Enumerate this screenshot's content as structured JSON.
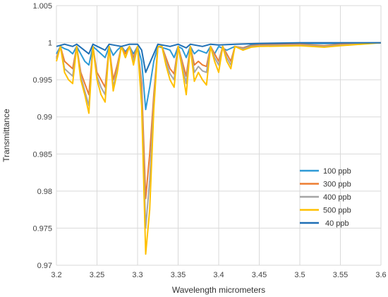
{
  "chart_data": {
    "type": "line",
    "title": "",
    "xlabel": "Wavelength micrometers",
    "ylabel": "Transmittance",
    "xlim": [
      3.2,
      3.6
    ],
    "ylim": [
      0.97,
      1.005
    ],
    "xticks": [
      "3.2",
      "3.25",
      "3.3",
      "3.35",
      "3.4",
      "3.45",
      "3.5",
      "3.55",
      "3.6"
    ],
    "yticks": [
      "0.97",
      "0.975",
      "0.98",
      "0.985",
      "0.99",
      "0.995",
      "1",
      "1.005"
    ],
    "grid": true,
    "legend_position": "right-middle",
    "series": [
      {
        "name": "100 ppb",
        "color": "#2E9AD6",
        "points": [
          [
            3.2,
            0.9985
          ],
          [
            3.205,
            0.9995
          ],
          [
            3.21,
            0.9992
          ],
          [
            3.215,
            0.999
          ],
          [
            3.22,
            0.9985
          ],
          [
            3.225,
            0.9995
          ],
          [
            3.235,
            0.9975
          ],
          [
            3.24,
            0.997
          ],
          [
            3.245,
            0.9995
          ],
          [
            3.255,
            0.9985
          ],
          [
            3.26,
            0.998
          ],
          [
            3.265,
            0.9995
          ],
          [
            3.27,
            0.9983
          ],
          [
            3.275,
            0.999
          ],
          [
            3.28,
            0.9995
          ],
          [
            3.285,
            0.9988
          ],
          [
            3.29,
            0.9995
          ],
          [
            3.295,
            0.9985
          ],
          [
            3.3,
            0.9995
          ],
          [
            3.305,
            0.9975
          ],
          [
            3.31,
            0.991
          ],
          [
            3.315,
            0.994
          ],
          [
            3.32,
            0.9975
          ],
          [
            3.325,
            0.9995
          ],
          [
            3.335,
            0.9992
          ],
          [
            3.34,
            0.999
          ],
          [
            3.345,
            0.998
          ],
          [
            3.35,
            0.9995
          ],
          [
            3.355,
            0.9992
          ],
          [
            3.36,
            0.998
          ],
          [
            3.365,
            0.9995
          ],
          [
            3.37,
            0.9985
          ],
          [
            3.375,
            0.999
          ],
          [
            3.38,
            0.9988
          ],
          [
            3.385,
            0.9986
          ],
          [
            3.39,
            0.9995
          ],
          [
            3.395,
            0.9985
          ],
          [
            3.4,
            0.9995
          ],
          [
            3.41,
            0.999
          ],
          [
            3.42,
            0.9995
          ],
          [
            3.43,
            0.9993
          ],
          [
            3.44,
            0.9997
          ],
          [
            3.45,
            0.9998
          ],
          [
            3.5,
            0.9999
          ],
          [
            3.55,
            0.9999
          ],
          [
            3.6,
            1.0
          ]
        ]
      },
      {
        "name": "300 ppb",
        "color": "#ED7D31",
        "points": [
          [
            3.2,
            0.998
          ],
          [
            3.205,
            0.9995
          ],
          [
            3.21,
            0.9975
          ],
          [
            3.215,
            0.997
          ],
          [
            3.22,
            0.9965
          ],
          [
            3.225,
            0.9995
          ],
          [
            3.23,
            0.996
          ],
          [
            3.235,
            0.9945
          ],
          [
            3.24,
            0.993
          ],
          [
            3.245,
            0.9995
          ],
          [
            3.25,
            0.996
          ],
          [
            3.255,
            0.995
          ],
          [
            3.26,
            0.994
          ],
          [
            3.265,
            0.9995
          ],
          [
            3.27,
            0.995
          ],
          [
            3.275,
            0.997
          ],
          [
            3.28,
            0.9995
          ],
          [
            3.285,
            0.9985
          ],
          [
            3.29,
            0.9995
          ],
          [
            3.295,
            0.998
          ],
          [
            3.3,
            0.9995
          ],
          [
            3.305,
            0.9945
          ],
          [
            3.31,
            0.979
          ],
          [
            3.315,
            0.985
          ],
          [
            3.32,
            0.993
          ],
          [
            3.325,
            0.9995
          ],
          [
            3.33,
            0.9995
          ],
          [
            3.335,
            0.998
          ],
          [
            3.34,
            0.9965
          ],
          [
            3.345,
            0.9958
          ],
          [
            3.35,
            0.9995
          ],
          [
            3.355,
            0.9975
          ],
          [
            3.36,
            0.9955
          ],
          [
            3.365,
            0.9995
          ],
          [
            3.37,
            0.997
          ],
          [
            3.375,
            0.9975
          ],
          [
            3.38,
            0.997
          ],
          [
            3.385,
            0.9968
          ],
          [
            3.39,
            0.9995
          ],
          [
            3.395,
            0.9985
          ],
          [
            3.4,
            0.9975
          ],
          [
            3.405,
            0.9995
          ],
          [
            3.41,
            0.9985
          ],
          [
            3.415,
            0.9975
          ],
          [
            3.42,
            0.9995
          ],
          [
            3.43,
            0.9993
          ],
          [
            3.44,
            0.9996
          ],
          [
            3.45,
            0.9997
          ],
          [
            3.5,
            0.9998
          ],
          [
            3.53,
            0.9996
          ],
          [
            3.55,
            0.9998
          ],
          [
            3.6,
            1.0
          ]
        ]
      },
      {
        "name": "400 ppb",
        "color": "#A5A5A5",
        "points": [
          [
            3.2,
            0.9978
          ],
          [
            3.205,
            0.9995
          ],
          [
            3.21,
            0.9965
          ],
          [
            3.215,
            0.996
          ],
          [
            3.22,
            0.9955
          ],
          [
            3.225,
            0.9995
          ],
          [
            3.23,
            0.9955
          ],
          [
            3.235,
            0.9935
          ],
          [
            3.24,
            0.9915
          ],
          [
            3.245,
            0.9995
          ],
          [
            3.25,
            0.9955
          ],
          [
            3.255,
            0.994
          ],
          [
            3.26,
            0.993
          ],
          [
            3.265,
            0.9995
          ],
          [
            3.27,
            0.994
          ],
          [
            3.275,
            0.9965
          ],
          [
            3.28,
            0.9995
          ],
          [
            3.285,
            0.998
          ],
          [
            3.29,
            0.9995
          ],
          [
            3.295,
            0.9975
          ],
          [
            3.3,
            0.9995
          ],
          [
            3.305,
            0.993
          ],
          [
            3.31,
            0.975
          ],
          [
            3.315,
            0.9815
          ],
          [
            3.32,
            0.992
          ],
          [
            3.325,
            0.9995
          ],
          [
            3.33,
            0.9995
          ],
          [
            3.335,
            0.9975
          ],
          [
            3.34,
            0.9958
          ],
          [
            3.345,
            0.995
          ],
          [
            3.35,
            0.9995
          ],
          [
            3.355,
            0.997
          ],
          [
            3.36,
            0.9945
          ],
          [
            3.365,
            0.9995
          ],
          [
            3.37,
            0.996
          ],
          [
            3.375,
            0.9968
          ],
          [
            3.38,
            0.9962
          ],
          [
            3.385,
            0.996
          ],
          [
            3.39,
            0.9995
          ],
          [
            3.395,
            0.998
          ],
          [
            3.4,
            0.997
          ],
          [
            3.405,
            0.9995
          ],
          [
            3.41,
            0.998
          ],
          [
            3.415,
            0.997
          ],
          [
            3.42,
            0.9995
          ],
          [
            3.43,
            0.9992
          ],
          [
            3.44,
            0.9995
          ],
          [
            3.45,
            0.9996
          ],
          [
            3.5,
            0.9997
          ],
          [
            3.53,
            0.9995
          ],
          [
            3.55,
            0.9997
          ],
          [
            3.6,
            1.0
          ]
        ]
      },
      {
        "name": "500 ppb",
        "color": "#FFC000",
        "points": [
          [
            3.2,
            0.9975
          ],
          [
            3.205,
            0.9995
          ],
          [
            3.21,
            0.996
          ],
          [
            3.215,
            0.995
          ],
          [
            3.22,
            0.9945
          ],
          [
            3.225,
            0.9995
          ],
          [
            3.23,
            0.995
          ],
          [
            3.235,
            0.993
          ],
          [
            3.24,
            0.9905
          ],
          [
            3.245,
            0.9995
          ],
          [
            3.25,
            0.995
          ],
          [
            3.255,
            0.993
          ],
          [
            3.26,
            0.992
          ],
          [
            3.265,
            0.9995
          ],
          [
            3.27,
            0.9935
          ],
          [
            3.275,
            0.996
          ],
          [
            3.28,
            0.9995
          ],
          [
            3.285,
            0.998
          ],
          [
            3.29,
            0.9995
          ],
          [
            3.295,
            0.997
          ],
          [
            3.3,
            0.9995
          ],
          [
            3.305,
            0.9915
          ],
          [
            3.31,
            0.9715
          ],
          [
            3.315,
            0.9775
          ],
          [
            3.32,
            0.991
          ],
          [
            3.325,
            0.9995
          ],
          [
            3.33,
            0.9995
          ],
          [
            3.335,
            0.997
          ],
          [
            3.34,
            0.995
          ],
          [
            3.345,
            0.994
          ],
          [
            3.35,
            0.9995
          ],
          [
            3.355,
            0.9965
          ],
          [
            3.36,
            0.993
          ],
          [
            3.365,
            0.9995
          ],
          [
            3.37,
            0.9948
          ],
          [
            3.375,
            0.996
          ],
          [
            3.38,
            0.995
          ],
          [
            3.385,
            0.9943
          ],
          [
            3.39,
            0.9995
          ],
          [
            3.395,
            0.9975
          ],
          [
            3.4,
            0.996
          ],
          [
            3.405,
            0.9995
          ],
          [
            3.41,
            0.9975
          ],
          [
            3.415,
            0.9965
          ],
          [
            3.42,
            0.9995
          ],
          [
            3.43,
            0.999
          ],
          [
            3.44,
            0.9994
          ],
          [
            3.45,
            0.9995
          ],
          [
            3.5,
            0.9996
          ],
          [
            3.53,
            0.9994
          ],
          [
            3.55,
            0.9996
          ],
          [
            3.6,
            1.0
          ]
        ]
      },
      {
        "name": "40 ppb",
        "color": "#1F6FB5",
        "points": [
          [
            3.2,
            0.9995
          ],
          [
            3.21,
            0.9998
          ],
          [
            3.22,
            0.9995
          ],
          [
            3.225,
            0.9998
          ],
          [
            3.24,
            0.9985
          ],
          [
            3.245,
            0.9998
          ],
          [
            3.26,
            0.999
          ],
          [
            3.265,
            0.9998
          ],
          [
            3.28,
            0.9995
          ],
          [
            3.29,
            0.9998
          ],
          [
            3.3,
            0.9998
          ],
          [
            3.305,
            0.999
          ],
          [
            3.31,
            0.996
          ],
          [
            3.32,
            0.9985
          ],
          [
            3.325,
            0.9998
          ],
          [
            3.34,
            0.9995
          ],
          [
            3.35,
            0.9998
          ],
          [
            3.36,
            0.9993
          ],
          [
            3.365,
            0.9998
          ],
          [
            3.38,
            0.9995
          ],
          [
            3.39,
            0.9998
          ],
          [
            3.4,
            0.9997
          ],
          [
            3.42,
            0.9998
          ],
          [
            3.45,
            0.9999
          ],
          [
            3.5,
            1.0
          ],
          [
            3.6,
            1.0
          ]
        ]
      }
    ]
  }
}
